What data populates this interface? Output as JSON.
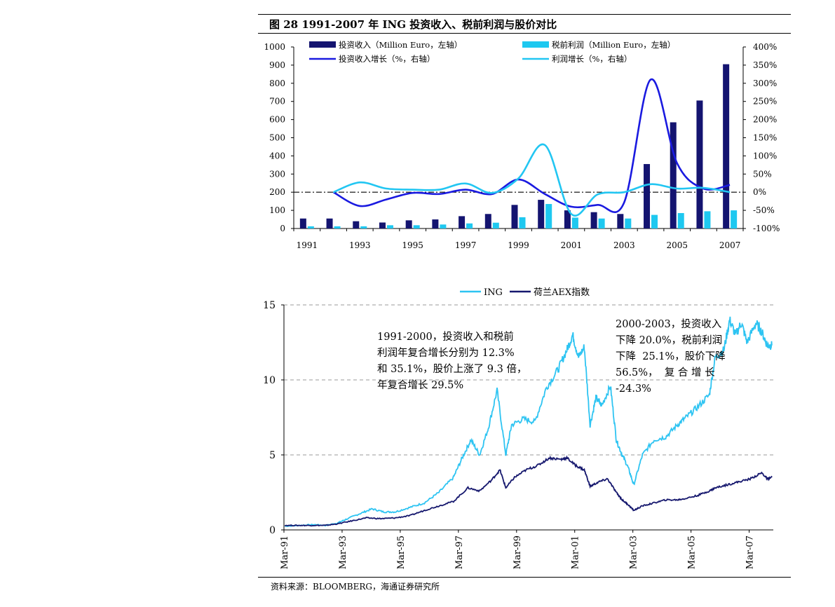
{
  "title": "图 28   1991-2007 年 ING 投资收入、税前利润与股价对比",
  "source": "资料来源：BLOOMBERG，海通证券研究所",
  "chart_data": [
    {
      "type": "bar",
      "categories": [
        "1991",
        "1992",
        "1993",
        "1994",
        "1995",
        "1996",
        "1997",
        "1998",
        "1999",
        "2000",
        "2001",
        "2002",
        "2003",
        "2004",
        "2005",
        "2006",
        "2007"
      ],
      "x_tick_labels": [
        "1991",
        "1993",
        "1995",
        "1997",
        "1999",
        "2001",
        "2003",
        "2005",
        "2007"
      ],
      "y_left": {
        "ticks": [
          "0",
          "100",
          "200",
          "300",
          "400",
          "500",
          "600",
          "700",
          "800",
          "900",
          "1000"
        ],
        "ylim": [
          0,
          1000
        ]
      },
      "y_right": {
        "ticks": [
          "-100%",
          "-50%",
          "0%",
          "50%",
          "100%",
          "150%",
          "200%",
          "250%",
          "300%",
          "350%",
          "400%"
        ],
        "ylim": [
          -100,
          400
        ]
      },
      "series": [
        {
          "name": "投资收入（Million Euro，左轴）",
          "kind": "bar",
          "axis": "left",
          "color": "#141470",
          "values": [
            55,
            55,
            40,
            33,
            45,
            50,
            68,
            80,
            130,
            158,
            100,
            90,
            80,
            355,
            585,
            705,
            905
          ]
        },
        {
          "name": "税前利润（Million Euro，左轴）",
          "kind": "bar",
          "axis": "left",
          "color": "#1ec8f0",
          "values": [
            12,
            12,
            12,
            18,
            18,
            22,
            28,
            32,
            62,
            135,
            60,
            55,
            55,
            75,
            85,
            95,
            100
          ]
        },
        {
          "name": "投资收入增长（%，右轴）",
          "kind": "line",
          "axis": "right",
          "color": "#1a1ae0",
          "values": [
            null,
            0,
            -38,
            -20,
            -2,
            -5,
            7,
            -5,
            35,
            -5,
            -40,
            -35,
            -28,
            310,
            80,
            10,
            20
          ]
        },
        {
          "name": "利润增长（%，右轴）",
          "kind": "line",
          "axis": "right",
          "color": "#22c6f2",
          "values": [
            null,
            0,
            27,
            10,
            7,
            7,
            24,
            -2,
            38,
            130,
            -60,
            -6,
            0,
            22,
            10,
            12,
            0
          ]
        }
      ],
      "reference_line": {
        "axis": "right",
        "value": 0,
        "style": "dash-dot"
      },
      "legend_placement": "top"
    },
    {
      "type": "line",
      "x_tick_labels": [
        "Mar-91",
        "Mar-93",
        "Mar-95",
        "Mar-97",
        "Mar-99",
        "Mar-01",
        "Mar-03",
        "Mar-05",
        "Mar-07"
      ],
      "y_ticks": [
        "0",
        "5",
        "10",
        "15"
      ],
      "ylim": [
        0,
        15
      ],
      "xlim": [
        1991.17,
        2008.0
      ],
      "series": [
        {
          "name": "ING",
          "color": "#2ec4f2",
          "points": [
            [
              1991.2,
              0.25
            ],
            [
              1991.7,
              0.3
            ],
            [
              1992.2,
              0.35
            ],
            [
              1992.6,
              0.3
            ],
            [
              1993.0,
              0.45
            ],
            [
              1993.3,
              0.7
            ],
            [
              1993.8,
              1.1
            ],
            [
              1994.2,
              1.4
            ],
            [
              1994.6,
              1.2
            ],
            [
              1995.0,
              1.2
            ],
            [
              1995.5,
              1.5
            ],
            [
              1996.0,
              1.8
            ],
            [
              1996.5,
              2.5
            ],
            [
              1997.0,
              3.5
            ],
            [
              1997.3,
              4.8
            ],
            [
              1997.6,
              6.0
            ],
            [
              1997.9,
              5.0
            ],
            [
              1998.2,
              6.8
            ],
            [
              1998.5,
              9.3
            ],
            [
              1998.8,
              5.0
            ],
            [
              1999.0,
              7.0
            ],
            [
              1999.4,
              7.4
            ],
            [
              1999.8,
              7.2
            ],
            [
              2000.2,
              9.5
            ],
            [
              2000.6,
              10.7
            ],
            [
              2000.9,
              12.0
            ],
            [
              2001.1,
              13.0
            ],
            [
              2001.3,
              11.5
            ],
            [
              2001.5,
              12.2
            ],
            [
              2001.7,
              7.0
            ],
            [
              2001.9,
              8.8
            ],
            [
              2002.1,
              8.3
            ],
            [
              2002.4,
              9.6
            ],
            [
              2002.6,
              6.0
            ],
            [
              2002.8,
              5.0
            ],
            [
              2003.0,
              4.2
            ],
            [
              2003.2,
              3.0
            ],
            [
              2003.5,
              5.0
            ],
            [
              2003.9,
              6.0
            ],
            [
              2004.3,
              6.2
            ],
            [
              2004.7,
              7.0
            ],
            [
              2005.0,
              7.5
            ],
            [
              2005.4,
              8.2
            ],
            [
              2005.8,
              9.0
            ],
            [
              2006.0,
              11.5
            ],
            [
              2006.3,
              12.0
            ],
            [
              2006.5,
              14.0
            ],
            [
              2006.7,
              13.0
            ],
            [
              2006.9,
              13.8
            ],
            [
              2007.1,
              12.5
            ],
            [
              2007.4,
              13.8
            ],
            [
              2007.6,
              13.2
            ],
            [
              2007.8,
              12.3
            ],
            [
              2007.95,
              12.3
            ]
          ]
        },
        {
          "name": "荷兰AEX指数",
          "color": "#16186e",
          "points": [
            [
              1991.2,
              0.3
            ],
            [
              1991.7,
              0.3
            ],
            [
              1992.2,
              0.3
            ],
            [
              1992.6,
              0.3
            ],
            [
              1993.0,
              0.4
            ],
            [
              1993.5,
              0.6
            ],
            [
              1994.0,
              0.8
            ],
            [
              1994.5,
              0.75
            ],
            [
              1995.0,
              0.8
            ],
            [
              1995.5,
              0.95
            ],
            [
              1996.0,
              1.3
            ],
            [
              1996.5,
              1.6
            ],
            [
              1997.0,
              1.9
            ],
            [
              1997.5,
              2.8
            ],
            [
              1997.9,
              2.6
            ],
            [
              1998.3,
              3.3
            ],
            [
              1998.6,
              4.0
            ],
            [
              1998.8,
              2.8
            ],
            [
              1999.1,
              3.5
            ],
            [
              1999.5,
              4.0
            ],
            [
              1999.9,
              4.3
            ],
            [
              2000.3,
              4.8
            ],
            [
              2000.7,
              4.7
            ],
            [
              2000.9,
              4.8
            ],
            [
              2001.2,
              4.3
            ],
            [
              2001.5,
              4.0
            ],
            [
              2001.7,
              2.9
            ],
            [
              2002.0,
              3.2
            ],
            [
              2002.3,
              3.4
            ],
            [
              2002.6,
              2.5
            ],
            [
              2002.8,
              2.0
            ],
            [
              2003.0,
              1.7
            ],
            [
              2003.2,
              1.3
            ],
            [
              2003.5,
              1.6
            ],
            [
              2003.9,
              1.8
            ],
            [
              2004.3,
              2.0
            ],
            [
              2004.7,
              2.0
            ],
            [
              2005.0,
              2.1
            ],
            [
              2005.4,
              2.3
            ],
            [
              2005.8,
              2.6
            ],
            [
              2006.0,
              2.8
            ],
            [
              2006.4,
              3.0
            ],
            [
              2006.8,
              3.2
            ],
            [
              2007.2,
              3.4
            ],
            [
              2007.6,
              3.8
            ],
            [
              2007.8,
              3.4
            ],
            [
              2007.95,
              3.5
            ]
          ]
        }
      ],
      "annotations": [
        "1991-2000，投资收入和税前\n利润年复合增长分别为 12.3%\n和 35.1%，股价上涨了 9.3 倍，\n年复合增长 29.5%",
        "2000-2003，投资收入\n下降 20.0%，税前利润\n下降  25.1%，股价下降\n56.5%，  复 合 增 长\n-24.3%"
      ],
      "grid": "horizontal-dashed",
      "legend_placement": "top"
    }
  ]
}
